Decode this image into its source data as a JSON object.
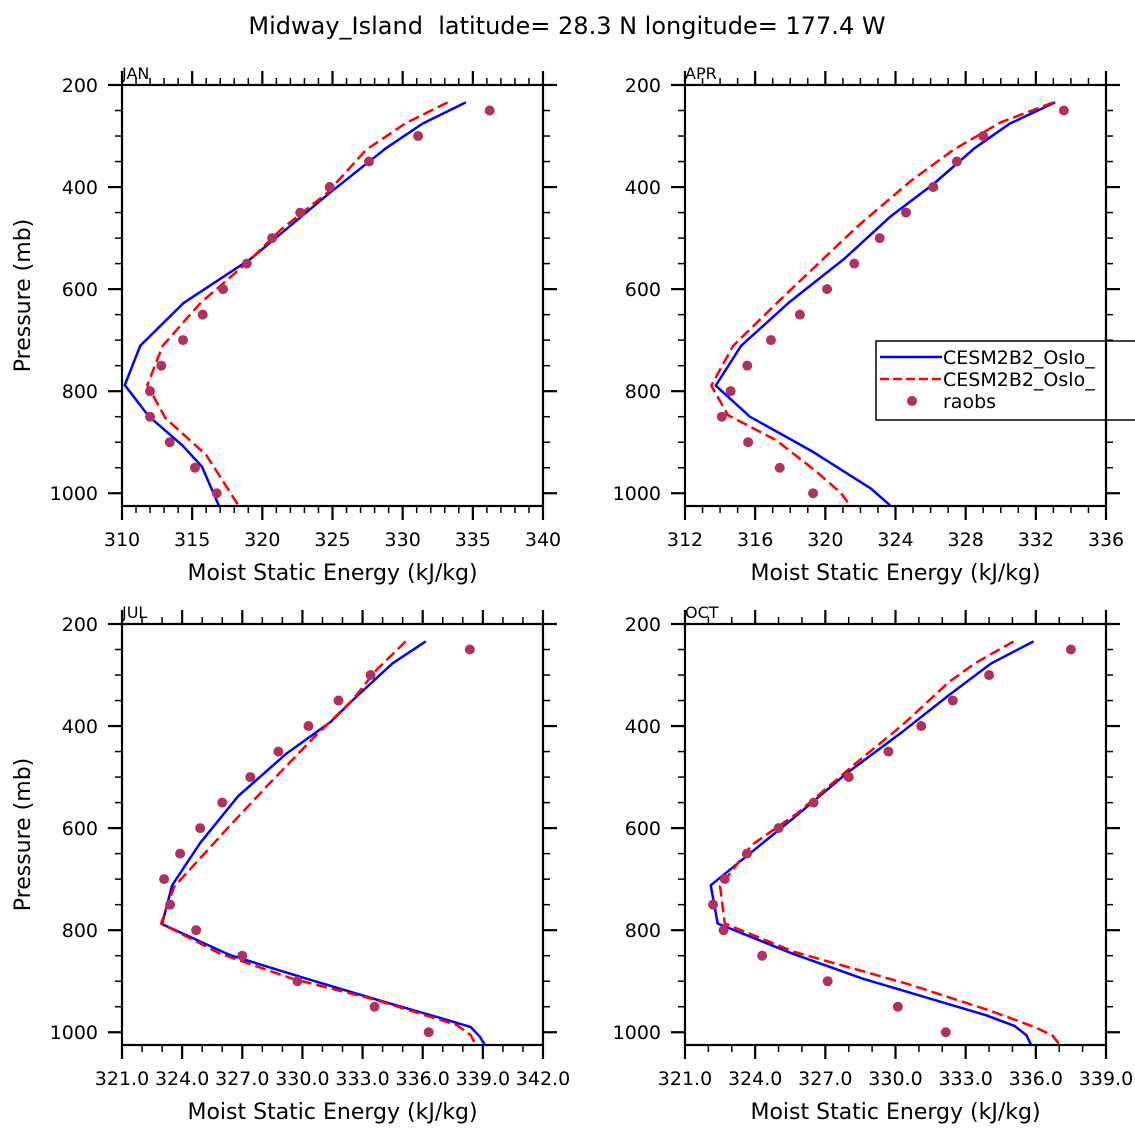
{
  "figure_title": "Midway_Island  latitude= 28.3 N longitude= 177.4 W",
  "legend": {
    "entries": [
      {
        "label": "CESM2B2_Oslo_",
        "style": "solid",
        "color": "#0000ff"
      },
      {
        "label": "CESM2B2_Oslo_",
        "style": "dashed",
        "color": "#ff0000"
      },
      {
        "label": "raobs",
        "style": "marker",
        "color": "#b03060"
      }
    ],
    "placement": "right-middle of APR panel (clipped at image edge)"
  },
  "colors": {
    "model1": "#0000ff",
    "model2": "#ff0000",
    "obs": "#b03060"
  },
  "chart_data": [
    {
      "type": "line",
      "panel": "JAN",
      "title": "JAN",
      "xlabel": "Moist Static Energy (kJ/kg)",
      "ylabel": "Pressure (mb)",
      "xlim": [
        310,
        340
      ],
      "ylim": [
        1025,
        200
      ],
      "xticks": [
        310,
        315,
        320,
        325,
        330,
        335,
        340
      ],
      "xtick_labels": [
        "310",
        "315",
        "320",
        "325",
        "330",
        "335",
        "340"
      ],
      "xminor_step": 1,
      "yticks": [
        200,
        400,
        600,
        800,
        1000
      ],
      "ytick_labels": [
        "200",
        "400",
        "600",
        "800",
        "1000"
      ],
      "yminor_step": 50,
      "show_ylabel": true,
      "series": [
        {
          "name": "CESM2B2_Oslo_ (solid)",
          "style": "solid",
          "x": [
            334.5,
            331.4,
            328.8,
            324.6,
            319.2,
            314.4,
            311.3,
            310.2,
            311.9,
            314.3,
            315.7,
            316.9
          ],
          "y": [
            234,
            276,
            324,
            416,
            540,
            627,
            711,
            788,
            849,
            906,
            948,
            1024
          ]
        },
        {
          "name": "CESM2B2_Oslo_ (dashed)",
          "style": "dashed",
          "x": [
            333.2,
            330.2,
            327.4,
            324.6,
            321.3,
            319.0,
            315.6,
            312.9,
            311.8,
            313.1,
            316.0,
            318.3
          ],
          "y": [
            234,
            275,
            327,
            412,
            484,
            546,
            627,
            711,
            788,
            853,
            925,
            1024
          ]
        },
        {
          "name": "raobs",
          "style": "marker",
          "x": [
            336.2,
            331.1,
            327.6,
            324.8,
            322.7,
            320.7,
            318.9,
            317.2,
            315.75,
            314.35,
            312.8,
            312.0,
            312.0,
            313.4,
            315.2,
            316.75
          ],
          "y": [
            250,
            300,
            350,
            400,
            450,
            500,
            550,
            600,
            650,
            700,
            750,
            800,
            850,
            900,
            950,
            1000
          ]
        }
      ]
    },
    {
      "type": "line",
      "panel": "APR",
      "title": "APR",
      "xlabel": "Moist Static Energy (kJ/kg)",
      "ylabel": "",
      "xlim": [
        312,
        336
      ],
      "ylim": [
        1025,
        200
      ],
      "xticks": [
        312,
        316,
        320,
        324,
        328,
        332,
        336
      ],
      "xtick_labels": [
        "312",
        "316",
        "320",
        "324",
        "328",
        "332",
        "336"
      ],
      "xminor_step": 1,
      "yticks": [
        200,
        400,
        600,
        800,
        1000
      ],
      "ytick_labels": [
        "200",
        "400",
        "600",
        "800",
        "1000"
      ],
      "yminor_step": 50,
      "show_ylabel": false,
      "show_legend": true,
      "series": [
        {
          "name": "CESM2B2_Oslo_ (solid)",
          "style": "solid",
          "x": [
            333.1,
            330.5,
            328.5,
            326.2,
            323.7,
            321.1,
            317.9,
            315.2,
            313.75,
            315.7,
            319.3,
            322.6,
            323.7
          ],
          "y": [
            234,
            276,
            324,
            393,
            458,
            540,
            627,
            711,
            789,
            850,
            919,
            991,
            1024
          ]
        },
        {
          "name": "CESM2B2_Oslo_ (dashed)",
          "style": "dashed",
          "x": [
            333.0,
            330.0,
            327.3,
            324.8,
            321.8,
            317.4,
            314.75,
            313.5,
            314.45,
            317.2,
            319.5,
            320.9,
            321.4
          ],
          "y": [
            234,
            273,
            327,
            390,
            478,
            622,
            711,
            789,
            847,
            896,
            958,
            1000,
            1024
          ]
        },
        {
          "name": "raobs",
          "style": "marker",
          "x": [
            333.6,
            329.0,
            327.5,
            326.15,
            324.6,
            323.1,
            321.65,
            320.1,
            318.55,
            316.9,
            315.55,
            314.6,
            314.1,
            315.6,
            317.4,
            319.3
          ],
          "y": [
            250,
            300,
            350,
            400,
            450,
            500,
            550,
            600,
            650,
            700,
            750,
            800,
            850,
            900,
            950,
            1000
          ]
        }
      ]
    },
    {
      "type": "line",
      "panel": "JUL",
      "title": "JUL",
      "xlabel": "Moist Static Energy (kJ/kg)",
      "ylabel": "Pressure (mb)",
      "xlim": [
        321,
        342
      ],
      "ylim": [
        1025,
        200
      ],
      "xticks": [
        321,
        324,
        327,
        330,
        333,
        336,
        339,
        342
      ],
      "xtick_labels": [
        "321.0",
        "324.0",
        "327.0",
        "330.0",
        "333.0",
        "336.0",
        "339.0",
        "342.0"
      ],
      "xminor_step": 1,
      "yticks": [
        200,
        400,
        600,
        800,
        1000
      ],
      "ytick_labels": [
        "200",
        "400",
        "600",
        "800",
        "1000"
      ],
      "yminor_step": 50,
      "show_ylabel": true,
      "series": [
        {
          "name": "CESM2B2_Oslo_ (solid)",
          "style": "solid",
          "x": [
            336.15,
            334.5,
            332.7,
            331.4,
            329.2,
            326.8,
            324.9,
            323.5,
            323.0,
            326.4,
            330.2,
            334.4,
            336.7,
            338.4,
            338.85,
            339.1
          ],
          "y": [
            234,
            277,
            342,
            392,
            454,
            537,
            629,
            712,
            788,
            849,
            895,
            944,
            970,
            990,
            1009,
            1025
          ]
        },
        {
          "name": "CESM2B2_Oslo_ (dashed)",
          "style": "dashed",
          "x": [
            335.15,
            333.7,
            332.5,
            330.6,
            328.2,
            326.2,
            323.6,
            322.95,
            325.9,
            329.5,
            333.7,
            337.7,
            338.4,
            338.65
          ],
          "y": [
            234,
            290,
            349,
            421,
            519,
            603,
            715,
            787,
            846,
            895,
            937,
            986,
            1006,
            1025
          ]
        },
        {
          "name": "raobs",
          "style": "marker",
          "x": [
            338.35,
            333.4,
            331.8,
            330.3,
            328.8,
            327.4,
            326.0,
            324.9,
            323.9,
            323.1,
            323.4,
            324.7,
            327.0,
            329.75,
            333.6,
            336.3
          ],
          "y": [
            250,
            300,
            350,
            400,
            450,
            500,
            550,
            600,
            650,
            700,
            750,
            800,
            850,
            900,
            950,
            1000
          ]
        }
      ]
    },
    {
      "type": "line",
      "panel": "OCT",
      "title": "OCT",
      "xlabel": "Moist Static Energy (kJ/kg)",
      "ylabel": "",
      "xlim": [
        321,
        339
      ],
      "ylim": [
        1025,
        200
      ],
      "xticks": [
        321,
        324,
        327,
        330,
        333,
        336,
        339
      ],
      "xtick_labels": [
        "321.0",
        "324.0",
        "327.0",
        "330.0",
        "333.0",
        "336.0",
        "339.0"
      ],
      "xminor_step": 1,
      "yticks": [
        200,
        400,
        600,
        800,
        1000
      ],
      "ytick_labels": [
        "200",
        "400",
        "600",
        "800",
        "1000"
      ],
      "yminor_step": 50,
      "show_ylabel": false,
      "series": [
        {
          "name": "CESM2B2_Oslo_ (solid)",
          "style": "solid",
          "x": [
            335.9,
            334.1,
            332.3,
            330.3,
            327.9,
            325.7,
            322.1,
            322.4,
            325.6,
            328.6,
            333.9,
            335.1,
            335.6,
            335.8
          ],
          "y": [
            234,
            277,
            339,
            411,
            493,
            578,
            712,
            787,
            846,
            895,
            967,
            988,
            1006,
            1025
          ]
        },
        {
          "name": "CESM2B2_Oslo_ (dashed)",
          "style": "dashed",
          "x": [
            335.05,
            333.4,
            332.3,
            330.3,
            328.3,
            325.8,
            323.85,
            322.5,
            322.7,
            325.7,
            330.5,
            334.0,
            335.95,
            336.7,
            337.0
          ],
          "y": [
            234,
            277,
            313,
            398,
            473,
            571,
            633,
            714,
            787,
            843,
            905,
            957,
            990,
            1006,
            1023
          ]
        },
        {
          "name": "raobs",
          "style": "marker",
          "x": [
            337.5,
            334.0,
            332.45,
            331.1,
            329.7,
            328.0,
            326.5,
            325.0,
            323.65,
            322.7,
            322.2,
            322.65,
            324.3,
            327.1,
            330.1,
            332.15
          ],
          "y": [
            250,
            300,
            350,
            400,
            450,
            500,
            550,
            600,
            650,
            700,
            750,
            800,
            850,
            900,
            950,
            1000
          ]
        }
      ]
    }
  ]
}
